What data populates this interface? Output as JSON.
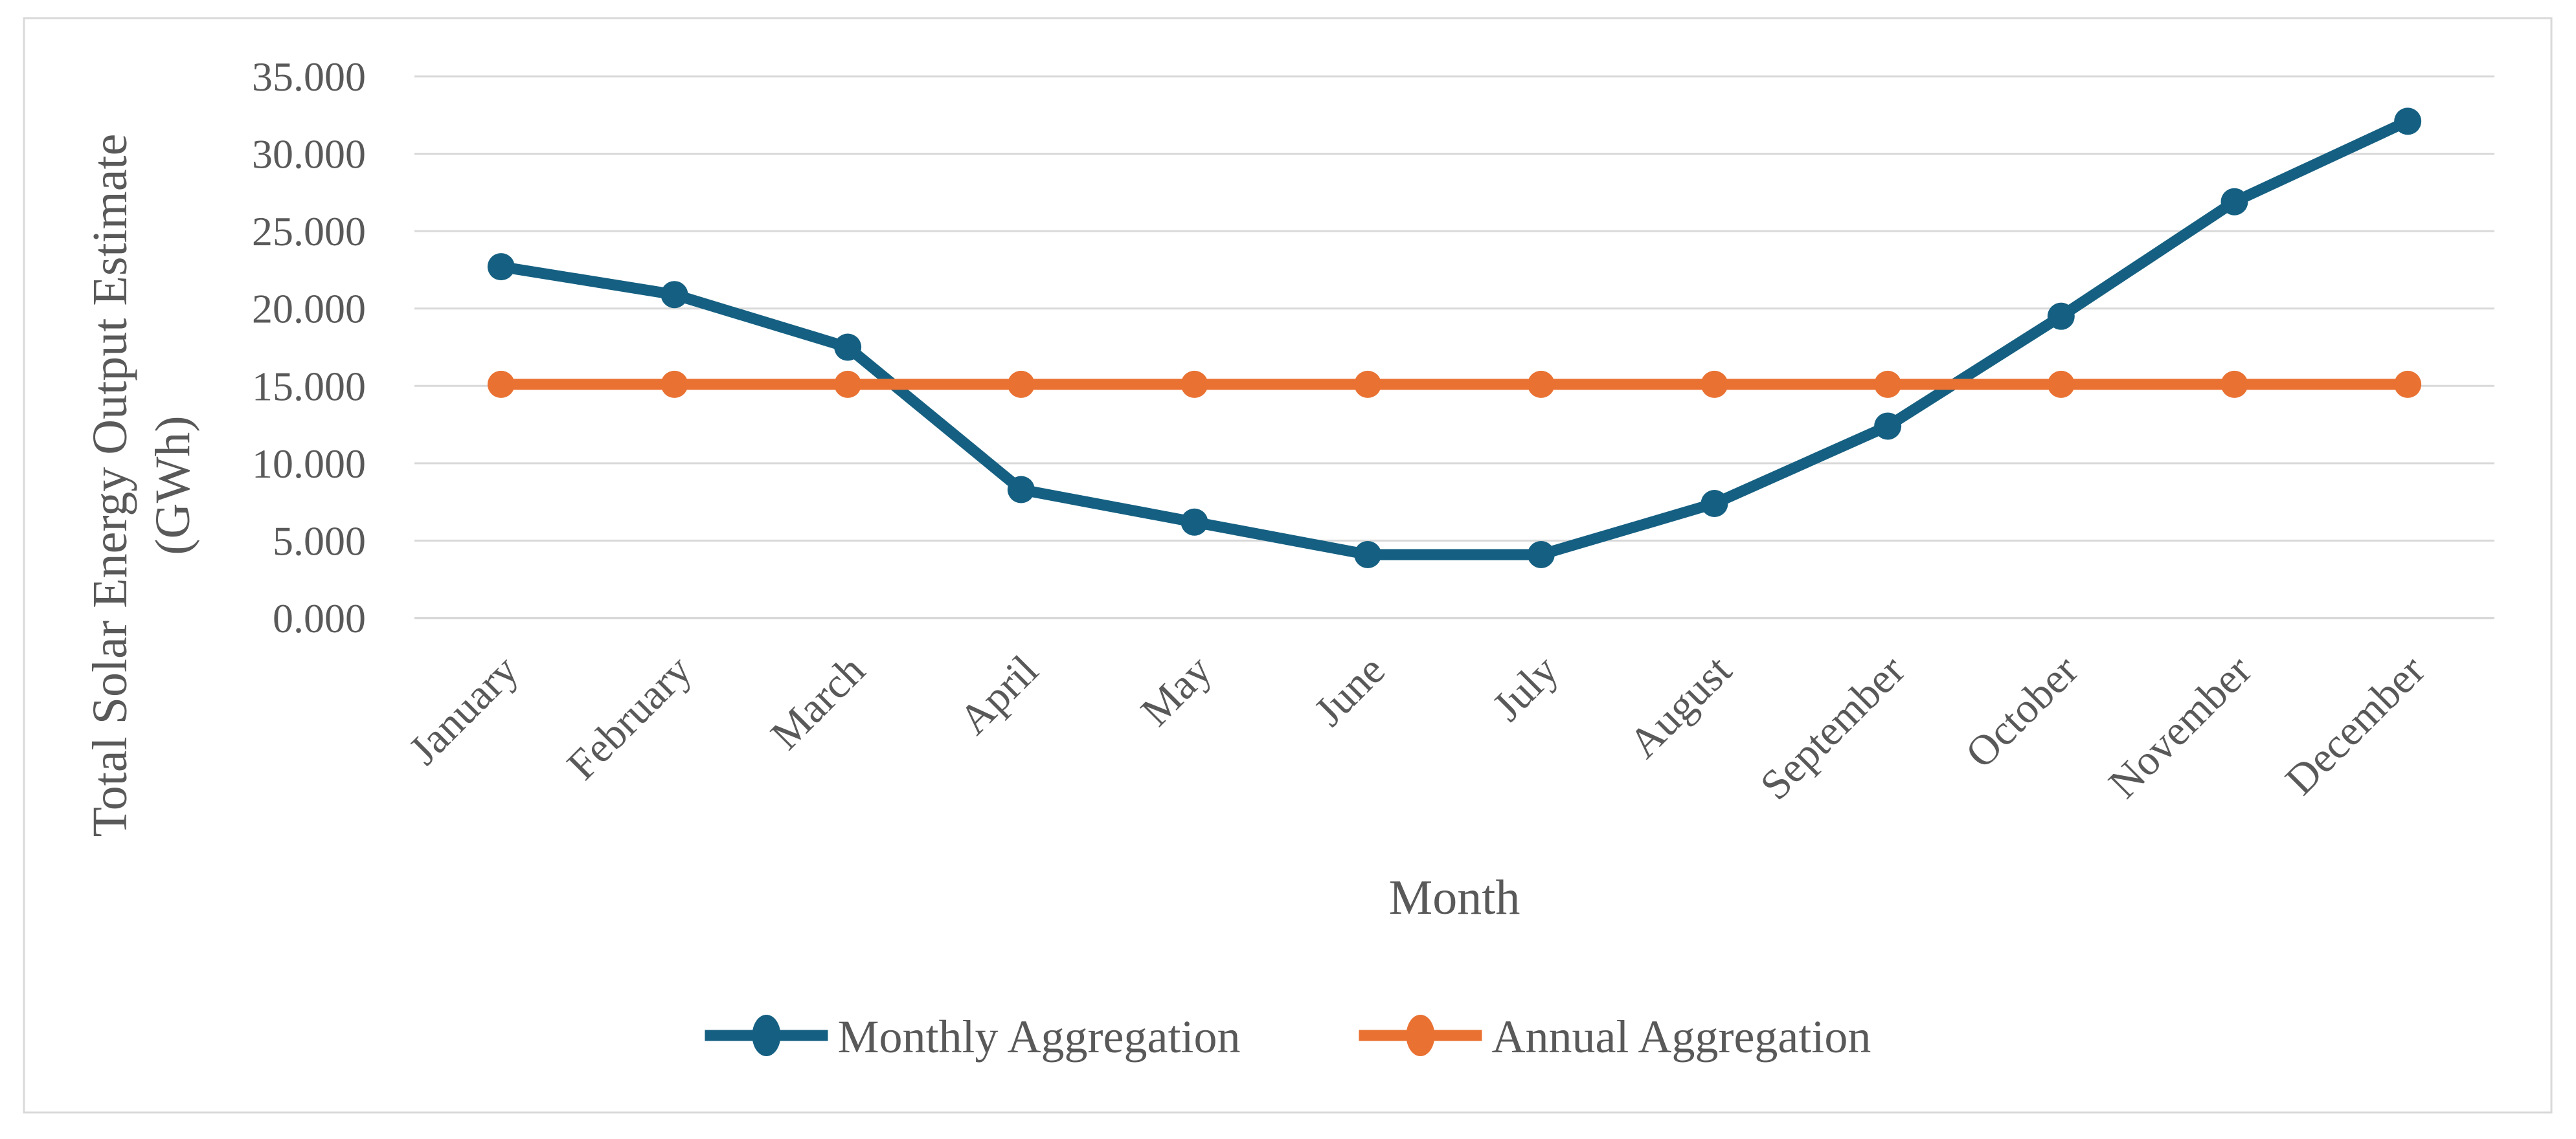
{
  "chart_data": {
    "type": "line",
    "title": "",
    "xlabel": "Month",
    "ylabel": "Total Solar Energy Output Estimate (GWh)",
    "ylabel_lines": [
      "Total Solar Energy Output Estimate",
      "(GWh)"
    ],
    "categories": [
      "January",
      "February",
      "March",
      "April",
      "May",
      "June",
      "July",
      "August",
      "September",
      "October",
      "November",
      "December"
    ],
    "series": [
      {
        "name": "Monthly Aggregation",
        "color": "#156082",
        "values": [
          22.7,
          20.9,
          17.5,
          8.3,
          6.2,
          4.1,
          4.1,
          7.4,
          12.4,
          19.5,
          26.9,
          32.1
        ]
      },
      {
        "name": "Annual Aggregation",
        "color": "#E97132",
        "values": [
          15.1,
          15.1,
          15.1,
          15.1,
          15.1,
          15.1,
          15.1,
          15.1,
          15.1,
          15.1,
          15.1,
          15.1
        ]
      }
    ],
    "ylim": [
      0,
      35
    ],
    "ytick_labels": [
      "0.000",
      "5.000",
      "10.000",
      "15.000",
      "20.000",
      "25.000",
      "30.000",
      "35.000"
    ],
    "grid": "horizontal",
    "legend_position": "bottom",
    "x_label_rotation": 45
  },
  "colors": {
    "background": "#FFFFFF",
    "frame_border": "#D9D9D9",
    "gridline": "#D9D9D9",
    "axis_line": "#D2D2D2",
    "text": "#595959"
  }
}
